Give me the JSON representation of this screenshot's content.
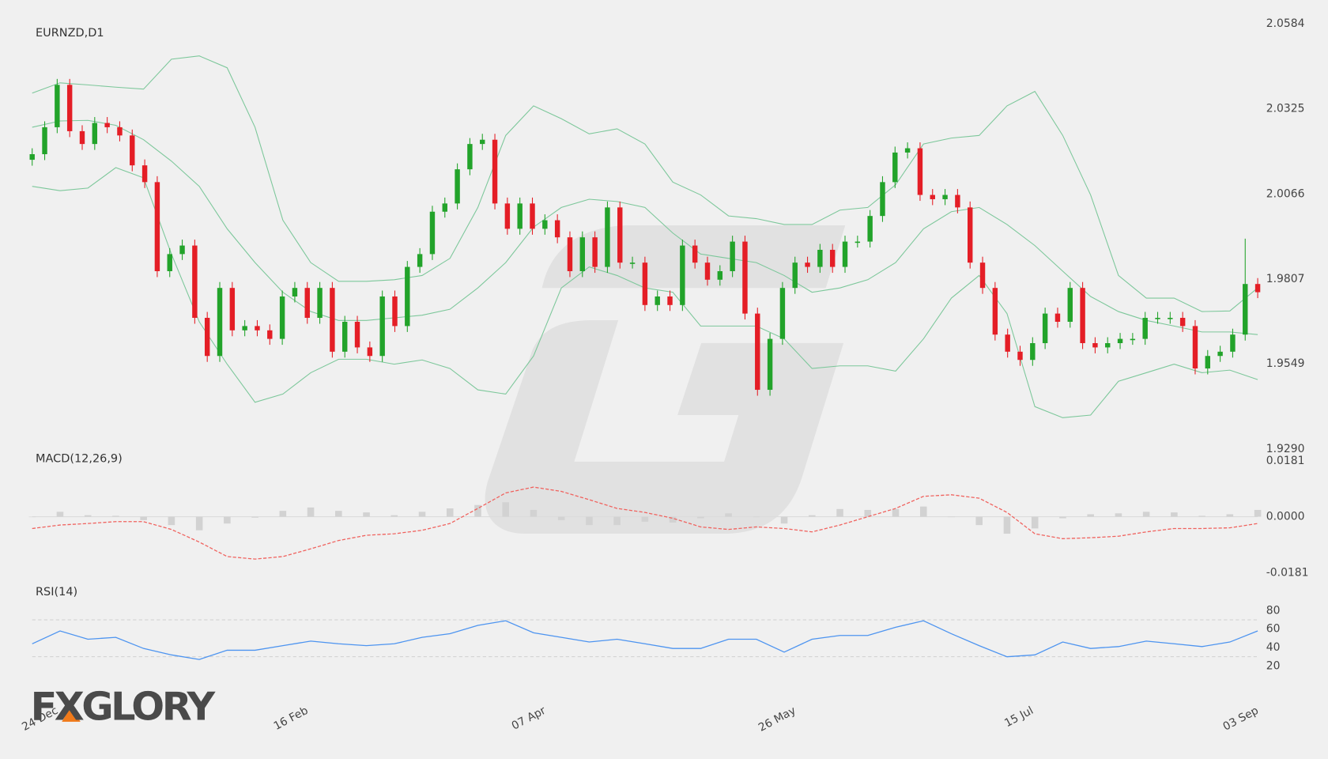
{
  "brand": "FXGLORY",
  "chart_data": [
    {
      "type": "candlestick",
      "title": "EURNZD,D1",
      "categories": [
        null,
        null,
        "24 Dec",
        null,
        null,
        null,
        null,
        null,
        null,
        null,
        null,
        null,
        null,
        null,
        null,
        null,
        null,
        null,
        null,
        null,
        null,
        null,
        "16 Feb",
        null,
        null,
        null,
        null,
        null,
        null,
        null,
        null,
        null,
        null,
        null,
        null,
        null,
        null,
        null,
        null,
        null,
        null,
        "07 Apr",
        null,
        null,
        null,
        null,
        null,
        null,
        null,
        null,
        null,
        null,
        null,
        null,
        null,
        null,
        null,
        null,
        null,
        null,
        null,
        "26 May",
        null,
        null,
        null,
        null,
        null,
        null,
        null,
        null,
        null,
        null,
        null,
        null,
        null,
        null,
        null,
        null,
        null,
        null,
        "15 Jul",
        null,
        null,
        null,
        null,
        null,
        null,
        null,
        null,
        null,
        null,
        null,
        null,
        null,
        null,
        null,
        null,
        null,
        "03 Sep"
      ],
      "open": [
        2.017,
        2.0187,
        2.0269,
        2.0398,
        2.0257,
        2.0218,
        2.0282,
        2.0269,
        2.0244,
        2.0153,
        2.0102,
        1.9831,
        1.9883,
        1.9909,
        1.9689,
        1.9573,
        1.978,
        1.9651,
        1.9664,
        1.9651,
        1.9625,
        1.9754,
        1.978,
        1.9689,
        1.978,
        1.9586,
        1.9677,
        1.9599,
        1.9573,
        1.9754,
        1.9664,
        1.9844,
        1.9883,
        2.0012,
        2.0037,
        2.0141,
        2.0218,
        2.0231,
        2.0037,
        1.996,
        2.0037,
        1.996,
        1.9986,
        1.9934,
        1.9831,
        1.9934,
        1.9844,
        2.0025,
        1.9857,
        1.9857,
        1.9728,
        1.9754,
        1.9728,
        1.9909,
        1.9857,
        1.9805,
        1.9831,
        1.9921,
        1.9702,
        1.947,
        1.9625,
        1.978,
        1.9857,
        1.9844,
        1.9896,
        1.9844,
        1.9921,
        1.9921,
        1.9999,
        2.0102,
        2.0192,
        2.0205,
        2.0063,
        2.005,
        2.0063,
        2.0025,
        1.9857,
        1.978,
        1.9638,
        1.9586,
        1.9561,
        1.9612,
        1.9702,
        1.9677,
        1.978,
        1.9612,
        1.9599,
        1.9612,
        1.9625,
        1.9625,
        1.9689,
        1.9689,
        1.9689,
        1.9664,
        1.9535,
        1.9573,
        1.9586,
        1.9638,
        1.9792
      ],
      "high": [
        2.0205,
        2.0287,
        2.0416,
        2.0416,
        2.0275,
        2.03,
        2.03,
        2.0287,
        2.0262,
        2.0171,
        2.012,
        1.9901,
        1.9927,
        1.9927,
        1.9707,
        1.9798,
        1.9798,
        1.9682,
        1.9682,
        1.9669,
        1.9772,
        1.9798,
        1.9798,
        1.9798,
        1.9798,
        1.9695,
        1.9695,
        1.9617,
        1.9772,
        1.9772,
        1.9862,
        1.9901,
        2.003,
        2.0055,
        2.0159,
        2.0236,
        2.0249,
        2.0249,
        2.0055,
        2.0055,
        2.0055,
        2.0004,
        2.0004,
        1.9952,
        1.9952,
        1.9952,
        2.0043,
        2.0043,
        1.9875,
        1.9875,
        1.9772,
        1.9772,
        1.9927,
        1.9927,
        1.9875,
        1.9849,
        1.9939,
        1.9939,
        1.972,
        1.9643,
        1.9798,
        1.9875,
        1.9875,
        1.9914,
        1.9914,
        1.9939,
        1.9939,
        2.0017,
        2.012,
        2.021,
        2.0223,
        2.0223,
        2.0081,
        2.0081,
        2.0081,
        2.0043,
        1.9875,
        1.9798,
        1.9656,
        1.9604,
        1.963,
        1.972,
        1.972,
        1.9798,
        1.9798,
        1.963,
        1.963,
        1.9643,
        1.9643,
        1.9707,
        1.9707,
        1.9707,
        1.9707,
        1.9682,
        1.9591,
        1.9604,
        1.9656,
        1.993,
        1.981
      ],
      "low": [
        2.0152,
        2.0169,
        2.0251,
        2.0239,
        2.02,
        2.02,
        2.0251,
        2.0226,
        2.0135,
        2.0084,
        1.9813,
        1.9813,
        1.9865,
        1.9671,
        1.9555,
        1.9555,
        1.9633,
        1.9633,
        1.9633,
        1.9607,
        1.9607,
        1.9736,
        1.9671,
        1.9671,
        1.9568,
        1.9568,
        1.9581,
        1.9555,
        1.9555,
        1.9646,
        1.9646,
        1.9826,
        1.9865,
        1.9994,
        2.0019,
        2.0123,
        2.02,
        2.0019,
        1.9942,
        1.9942,
        1.9942,
        1.9942,
        1.9916,
        1.9813,
        1.9813,
        1.9826,
        1.9826,
        1.9839,
        1.9839,
        1.971,
        1.971,
        1.971,
        1.971,
        1.9839,
        1.9787,
        1.9787,
        1.9813,
        1.9684,
        1.9452,
        1.9452,
        1.9607,
        1.9762,
        1.9826,
        1.9826,
        1.9826,
        1.9826,
        1.9903,
        1.9903,
        1.9981,
        2.0084,
        2.0174,
        2.0045,
        2.0032,
        2.0032,
        2.0007,
        1.9839,
        1.9762,
        1.962,
        1.9568,
        1.9543,
        1.9543,
        1.9594,
        1.9659,
        1.9659,
        1.9594,
        1.9581,
        1.9581,
        1.9594,
        1.9607,
        1.9607,
        1.9671,
        1.9671,
        1.9646,
        1.9517,
        1.9517,
        1.9555,
        1.9568,
        1.962,
        1.9749
      ],
      "close": [
        2.0187,
        2.0269,
        2.0398,
        2.0257,
        2.0218,
        2.0282,
        2.0269,
        2.0244,
        2.0153,
        2.0102,
        1.9831,
        1.9883,
        1.9909,
        1.9689,
        1.9573,
        1.978,
        1.9651,
        1.9664,
        1.9651,
        1.9625,
        1.9754,
        1.978,
        1.9689,
        1.978,
        1.9586,
        1.9677,
        1.9599,
        1.9573,
        1.9754,
        1.9664,
        1.9844,
        1.9883,
        2.0012,
        2.0037,
        2.0141,
        2.0218,
        2.0231,
        2.0037,
        1.996,
        2.0037,
        1.996,
        1.9986,
        1.9934,
        1.9831,
        1.9934,
        1.9844,
        2.0025,
        1.9857,
        1.9857,
        1.9728,
        1.9754,
        1.9728,
        1.9909,
        1.9857,
        1.9805,
        1.9831,
        1.9921,
        1.9702,
        1.947,
        1.9625,
        1.978,
        1.9857,
        1.9844,
        1.9896,
        1.9844,
        1.9921,
        1.9921,
        1.9999,
        2.0102,
        2.0192,
        2.0205,
        2.0063,
        2.005,
        2.0063,
        2.0025,
        1.9857,
        1.978,
        1.9638,
        1.9586,
        1.9561,
        1.9612,
        1.9702,
        1.9677,
        1.978,
        1.9612,
        1.9599,
        1.9612,
        1.9625,
        1.9625,
        1.9689,
        1.9689,
        1.9689,
        1.9664,
        1.9535,
        1.9573,
        1.9586,
        1.9638,
        1.9792,
        1.9767
      ],
      "up_color": "#22a32a",
      "down_color": "#e41e26",
      "bollinger": {
        "color": "#7cc79a",
        "upper": [
          2.0373,
          2.0404,
          2.0398,
          2.0391,
          2.0385,
          2.0476,
          2.0486,
          2.045,
          2.0269,
          1.9986,
          1.9857,
          1.98,
          1.98,
          1.9805,
          1.9818,
          1.987,
          2.0025,
          2.0244,
          2.0334,
          2.0295,
          2.0249,
          2.0264,
          2.0218,
          2.0102,
          2.0063,
          1.9999,
          1.9991,
          1.9973,
          1.9973,
          2.0017,
          2.0025,
          2.0094,
          2.0218,
          2.0236,
          2.0244,
          2.0334,
          2.0378,
          2.0244,
          2.0063,
          1.9818,
          1.9749,
          1.9749,
          1.9708,
          1.971,
          1.978
        ],
        "middle": [
          2.0269,
          2.0288,
          2.029,
          2.0275,
          2.0231,
          2.0166,
          2.0089,
          1.996,
          1.9857,
          1.9767,
          1.9708,
          1.9681,
          1.9681,
          1.9689,
          1.9697,
          1.9715,
          1.978,
          1.9857,
          1.9965,
          2.0025,
          2.005,
          2.0043,
          2.0025,
          1.9947,
          1.9883,
          1.987,
          1.9857,
          1.9818,
          1.9767,
          1.978,
          1.9805,
          1.9857,
          1.996,
          2.0012,
          2.0025,
          1.9973,
          1.9909,
          1.9831,
          1.9754,
          1.9708,
          1.9681,
          1.9664,
          1.9646,
          1.9646,
          1.9638
        ],
        "lower": [
          2.0089,
          2.0076,
          2.0084,
          2.0146,
          2.0115,
          1.9883,
          1.9677,
          1.9548,
          1.9432,
          1.9457,
          1.9522,
          1.9563,
          1.9563,
          1.9548,
          1.9561,
          1.9535,
          1.947,
          1.9457,
          1.9573,
          1.978,
          1.9844,
          1.9818,
          1.978,
          1.9767,
          1.9664,
          1.9664,
          1.9664,
          1.9625,
          1.9535,
          1.9543,
          1.9543,
          1.9527,
          1.9625,
          1.9749,
          1.9818,
          1.9702,
          1.9419,
          1.9385,
          1.9393,
          1.9496,
          1.9522,
          1.9548,
          1.9522,
          1.953,
          1.9501
        ]
      },
      "ylim": [
        1.929,
        2.0584
      ],
      "yticks": [
        {
          "value": 1.929,
          "label": "1.9290"
        },
        1.9549,
        1.9807,
        2.0066,
        2.0325,
        2.0584
      ]
    },
    {
      "type": "macd",
      "title": "MACD(12,26,9)",
      "histogram": [
        0,
        0.0016,
        0.0005,
        0.0003,
        -0.0011,
        -0.0027,
        -0.0044,
        -0.0022,
        -0.0003,
        0.0019,
        0.003,
        0.0019,
        0.0014,
        0.0005,
        0.0016,
        0.0027,
        0.0038,
        0.0047,
        0.0022,
        -0.0011,
        -0.0027,
        -0.0027,
        -0.0016,
        -0.0019,
        -0.0005,
        0.0011,
        0,
        -0.0022,
        0.0005,
        0.0025,
        0.0022,
        0.0025,
        0.0033,
        0,
        -0.0027,
        -0.0055,
        -0.0038,
        -0.0005,
        0.0008,
        0.0011,
        0.0016,
        0.0014,
        0.0003,
        0.0008,
        0.0022
      ],
      "histogram_color": "#d2d2d2",
      "signal": [
        -0.0038,
        -0.0027,
        -0.0022,
        -0.0016,
        -0.0016,
        -0.0041,
        -0.0082,
        -0.0129,
        -0.0137,
        -0.0129,
        -0.0104,
        -0.0077,
        -0.006,
        -0.0055,
        -0.0044,
        -0.0022,
        0.0027,
        0.0077,
        0.0096,
        0.0082,
        0.0055,
        0.0027,
        0.0014,
        -0.0005,
        -0.0033,
        -0.0041,
        -0.0033,
        -0.0038,
        -0.0049,
        -0.0027,
        0,
        0.0027,
        0.0066,
        0.0071,
        0.006,
        0.0014,
        -0.0055,
        -0.0071,
        -0.0068,
        -0.0063,
        -0.0049,
        -0.0038,
        -0.0038,
        -0.0036,
        -0.0022
      ],
      "signal_color": "#f0625e",
      "ylim": [
        -0.0181,
        0.0181
      ],
      "yticks": [
        0.0181,
        {
          "value": 0,
          "label": "0.0000"
        },
        -0.0181
      ]
    },
    {
      "type": "line",
      "title": "RSI(14)",
      "values": [
        44,
        58,
        49,
        51,
        39,
        32,
        27,
        37,
        37,
        42,
        47,
        44,
        42,
        44,
        51,
        55,
        64,
        69,
        56,
        51,
        46,
        49,
        44,
        39,
        39,
        49,
        49,
        35,
        49,
        53,
        53,
        62,
        69,
        55,
        42,
        30,
        32,
        46,
        39,
        41,
        47,
        44,
        41,
        46,
        58
      ],
      "color": "#4d94f0",
      "levels": [
        30,
        70
      ],
      "ylim": [
        10,
        90
      ],
      "yticks": [
        20,
        40,
        60,
        80
      ]
    }
  ]
}
